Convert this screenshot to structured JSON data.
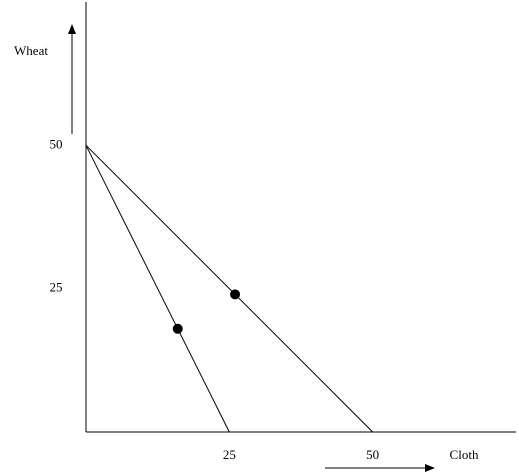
{
  "chart_data": {
    "type": "line",
    "x_label": "Cloth",
    "y_label": "Wheat",
    "xlim": [
      0,
      75
    ],
    "ylim": [
      0,
      75
    ],
    "xticks": [
      25,
      50
    ],
    "yticks": [
      25,
      50
    ],
    "series": [
      {
        "color": "#000000",
        "x": [
          0,
          25
        ],
        "values": [
          50,
          0
        ]
      },
      {
        "color": "#000000",
        "x": [
          0,
          50
        ],
        "values": [
          50,
          0
        ]
      }
    ],
    "points": {
      "color": "#000000",
      "x": [
        16,
        26
      ],
      "values": [
        18,
        24
      ]
    }
  }
}
